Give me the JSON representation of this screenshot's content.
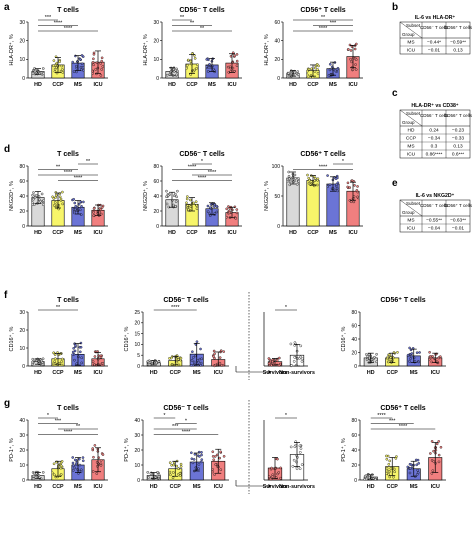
{
  "colors": {
    "HD": "#d9d9d9",
    "CCP": "#f7f56a",
    "MS": "#6b74d6",
    "ICU": "#f07f7f",
    "Survivors": "#f07f7f",
    "Non-survivors": "#ffffff",
    "dot": "#111111"
  },
  "panel_letters": {
    "a": "a",
    "b": "b",
    "c": "c",
    "d": "d",
    "e": "e",
    "f": "f",
    "g": "g"
  },
  "categories": [
    "HD",
    "CCP",
    "MS",
    "ICU"
  ],
  "chart_data": [
    {
      "id": "a1",
      "type": "bar",
      "title": "T cells",
      "ylabel": "HLA-DR⁺, %",
      "categories": [
        "HD",
        "CCP",
        "MS",
        "ICU"
      ],
      "values": [
        3.5,
        7.0,
        8.0,
        8.5
      ],
      "errors": [
        1.5,
        4.0,
        4.0,
        6.0
      ],
      "ylim": [
        0,
        30
      ],
      "yticks": [
        "0",
        "10",
        "20",
        "30"
      ],
      "sig": [
        {
          "a": 0,
          "b": 1,
          "label": "***"
        },
        {
          "a": 0,
          "b": 2,
          "label": "****"
        },
        {
          "a": 0,
          "b": 3,
          "label": "****"
        }
      ]
    },
    {
      "id": "a2",
      "type": "bar",
      "title": "CD56⁻ T cells",
      "ylabel": "HLA-DR⁺, %",
      "categories": [
        "HD",
        "CCP",
        "MS",
        "ICU"
      ],
      "values": [
        3.5,
        7.5,
        7.0,
        8.0
      ],
      "errors": [
        2.0,
        5.0,
        3.5,
        5.0
      ],
      "ylim": [
        0,
        30
      ],
      "yticks": [
        "0",
        "10",
        "20",
        "30"
      ],
      "sig": [
        {
          "a": 0,
          "b": 1,
          "label": "**"
        },
        {
          "a": 0,
          "b": 2,
          "label": "**"
        },
        {
          "a": 0,
          "b": 3,
          "label": "**"
        }
      ]
    },
    {
      "id": "a3",
      "type": "bar",
      "title": "CD56⁺ T cells",
      "ylabel": "HLA-DR⁺, %",
      "categories": [
        "HD",
        "CCP",
        "MS",
        "ICU"
      ],
      "values": [
        5.0,
        8.0,
        10.0,
        23.0
      ],
      "errors": [
        3.0,
        6.0,
        7.0,
        12.0
      ],
      "ylim": [
        0,
        60
      ],
      "yticks": [
        "0",
        "20",
        "40",
        "60"
      ],
      "sig": [
        {
          "a": 0,
          "b": 3,
          "label": "**"
        },
        {
          "a": 1,
          "b": 3,
          "label": "***"
        },
        {
          "a": 0,
          "b": 3,
          "label": "****"
        }
      ]
    },
    {
      "id": "d1",
      "type": "bar",
      "title": "T cells",
      "ylabel": "NKG2D⁺, %",
      "categories": [
        "HD",
        "CCP",
        "MS",
        "ICU"
      ],
      "values": [
        38,
        34,
        25,
        21
      ],
      "errors": [
        8,
        10,
        9,
        7
      ],
      "ylim": [
        0,
        80
      ],
      "yticks": [
        "0",
        "20",
        "40",
        "60",
        "80"
      ],
      "sig": [
        {
          "a": 2,
          "b": 3,
          "label": "**"
        },
        {
          "a": 0,
          "b": 2,
          "label": "**"
        },
        {
          "a": 0,
          "b": 3,
          "label": "****"
        },
        {
          "a": 1,
          "b": 3,
          "label": "****"
        }
      ]
    },
    {
      "id": "d2",
      "type": "bar",
      "title": "CD56⁻ T cells",
      "ylabel": "NKG2D⁺, %",
      "categories": [
        "HD",
        "CCP",
        "MS",
        "ICU"
      ],
      "values": [
        35,
        29,
        23,
        18
      ],
      "errors": [
        10,
        9,
        8,
        7
      ],
      "ylim": [
        0,
        80
      ],
      "yticks": [
        "0",
        "20",
        "40",
        "60",
        "80"
      ],
      "sig": [
        {
          "a": 1,
          "b": 2,
          "label": "*"
        },
        {
          "a": 0,
          "b": 2,
          "label": "****"
        },
        {
          "a": 1,
          "b": 3,
          "label": "****"
        },
        {
          "a": 0,
          "b": 3,
          "label": "****"
        }
      ]
    },
    {
      "id": "d3",
      "type": "bar",
      "title": "CD56⁺ T cells",
      "ylabel": "NKG2D⁺, %",
      "categories": [
        "HD",
        "CCP",
        "MS",
        "ICU"
      ],
      "values": [
        80,
        76,
        70,
        58
      ],
      "errors": [
        10,
        8,
        12,
        15
      ],
      "ylim": [
        0,
        100
      ],
      "yticks": [
        "0",
        "50",
        "100"
      ],
      "sig": [
        {
          "a": 2,
          "b": 3,
          "label": "*"
        },
        {
          "a": 0,
          "b": 3,
          "label": "****"
        }
      ]
    },
    {
      "id": "f1",
      "type": "bar",
      "title": "T cells",
      "ylabel": "CD16⁺, %",
      "categories": [
        "HD",
        "CCP",
        "MS",
        "ICU"
      ],
      "values": [
        2.5,
        4.0,
        6.5,
        4.0
      ],
      "errors": [
        1.5,
        3.0,
        6.0,
        3.5
      ],
      "ylim": [
        0,
        30
      ],
      "yticks": [
        "0",
        "10",
        "20",
        "30"
      ],
      "sig": [
        {
          "a": 0,
          "b": 2,
          "label": "**"
        }
      ]
    },
    {
      "id": "f2",
      "type": "bar",
      "title": "CD56⁻ T cells",
      "ylabel": "CD16⁺, %",
      "categories": [
        "HD",
        "CCP",
        "MS",
        "ICU"
      ],
      "values": [
        1.5,
        2.5,
        5.5,
        3.0
      ],
      "errors": [
        1.0,
        2.0,
        5.0,
        3.5
      ],
      "ylim": [
        0,
        25
      ],
      "yticks": [
        "0",
        "5",
        "10",
        "15",
        "20",
        "25"
      ],
      "sig": [
        {
          "a": 0,
          "b": 2,
          "label": "****"
        }
      ]
    },
    {
      "id": "f2b",
      "type": "bar",
      "title": "",
      "ylabel": "",
      "categories": [
        "Survivors",
        "Non-survivors"
      ],
      "values": [
        2.0,
        5.0
      ],
      "errors": [
        1.5,
        5.0
      ],
      "ylim": [
        0,
        25
      ],
      "yticks": [],
      "sig": [
        {
          "a": 0,
          "b": 1,
          "label": "*"
        }
      ]
    },
    {
      "id": "f3",
      "type": "bar",
      "title": "CD56⁺ T cells",
      "ylabel": "CD16⁺, %",
      "categories": [
        "HD",
        "CCP",
        "MS",
        "ICU"
      ],
      "values": [
        12,
        12,
        15,
        12
      ],
      "errors": [
        7,
        7,
        10,
        7
      ],
      "ylim": [
        0,
        80
      ],
      "yticks": [
        "0",
        "20",
        "40",
        "60",
        "80"
      ],
      "sig": []
    },
    {
      "id": "g1",
      "type": "bar",
      "title": "T cells",
      "ylabel": "PD-1⁺, %",
      "categories": [
        "HD",
        "CCP",
        "MS",
        "ICU"
      ],
      "values": [
        3.0,
        7.5,
        10.0,
        13.5
      ],
      "errors": [
        2.0,
        5.0,
        5.0,
        8.0
      ],
      "ylim": [
        0,
        40
      ],
      "yticks": [
        "0",
        "10",
        "20",
        "30",
        "40"
      ],
      "sig": [
        {
          "a": 0,
          "b": 1,
          "label": "*"
        },
        {
          "a": 0,
          "b": 2,
          "label": "***"
        },
        {
          "a": 1,
          "b": 3,
          "label": "**"
        },
        {
          "a": 0,
          "b": 3,
          "label": "****"
        }
      ]
    },
    {
      "id": "g2",
      "type": "bar",
      "title": "CD56⁻ T cells",
      "ylabel": "PD-1⁺, %",
      "categories": [
        "HD",
        "CCP",
        "MS",
        "ICU"
      ],
      "values": [
        3.0,
        7.5,
        12.0,
        12.5
      ],
      "errors": [
        2.0,
        5.0,
        6.0,
        8.0
      ],
      "ylim": [
        0,
        40
      ],
      "yticks": [
        "0",
        "10",
        "20",
        "30",
        "40"
      ],
      "sig": [
        {
          "a": 0,
          "b": 1,
          "label": "*"
        },
        {
          "a": 1,
          "b": 2,
          "label": "*"
        },
        {
          "a": 0,
          "b": 2,
          "label": "***"
        },
        {
          "a": 0,
          "b": 3,
          "label": "****"
        }
      ]
    },
    {
      "id": "g2b",
      "type": "bar",
      "title": "",
      "ylabel": "",
      "categories": [
        "Survivors",
        "Non-survivors"
      ],
      "values": [
        8.0,
        17.0
      ],
      "errors": [
        7.0,
        8.0
      ],
      "ylim": [
        0,
        40
      ],
      "yticks": [],
      "sig": [
        {
          "a": 0,
          "b": 1,
          "label": "*"
        }
      ]
    },
    {
      "id": "g3",
      "type": "bar",
      "title": "CD56⁺ T cells",
      "ylabel": "PD-1⁺, %",
      "categories": [
        "HD",
        "CCP",
        "MS",
        "ICU"
      ],
      "values": [
        4.0,
        18.0,
        15.0,
        30.0
      ],
      "errors": [
        3.0,
        12.0,
        10.0,
        20.0
      ],
      "ylim": [
        0,
        80
      ],
      "yticks": [
        "0",
        "20",
        "40",
        "60",
        "80"
      ],
      "sig": [
        {
          "a": 0,
          "b": 1,
          "label": "****"
        },
        {
          "a": 0,
          "b": 2,
          "label": "***"
        },
        {
          "a": 0,
          "b": 3,
          "label": "****"
        }
      ]
    }
  ],
  "tables": {
    "b": {
      "title": "IL-6 vs HLA-DR⁺",
      "head": [
        "Subset",
        "CD56⁻ T cells",
        "CD56⁺ T cells"
      ],
      "corner": "Group",
      "rows": [
        [
          "MS",
          "−0.44*",
          "−0.59**"
        ],
        [
          "ICU",
          "−0.01",
          "0.13"
        ]
      ]
    },
    "c": {
      "title": "HLA-DR⁺ vs CD38⁺",
      "head": [
        "Subset",
        "CD56⁻ T cells",
        "CD56⁺ T cells"
      ],
      "corner": "Group",
      "rows": [
        [
          "HD",
          "0.24",
          "−0.23"
        ],
        [
          "CCP",
          "−0.34",
          "−0.33"
        ],
        [
          "MS",
          "0.3",
          "0.13"
        ],
        [
          "ICU",
          "0.86****",
          "0.6***"
        ]
      ]
    },
    "e": {
      "title": "IL-6 vs NKG2D⁺",
      "head": [
        "Subset",
        "CD56⁻ T cells",
        "CD56⁺ T cells"
      ],
      "corner": "Group",
      "rows": [
        [
          "MS",
          "−0.55**",
          "−0.63**"
        ],
        [
          "ICU",
          "−0.04",
          "−0.01"
        ]
      ]
    }
  }
}
